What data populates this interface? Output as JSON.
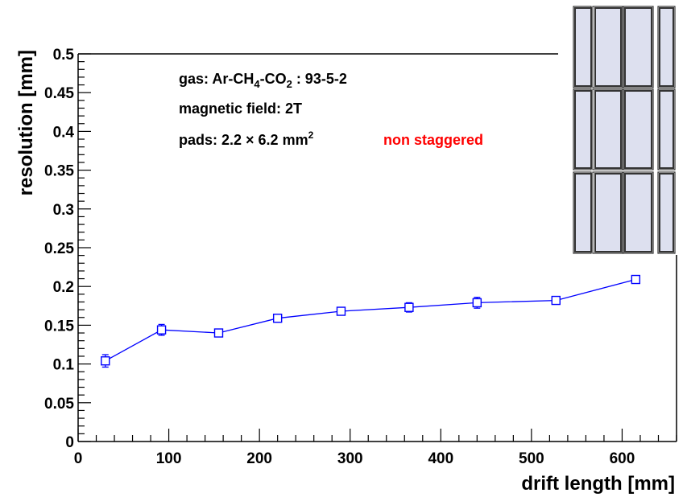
{
  "chart_data": {
    "type": "line",
    "title": "",
    "xlabel": "drift length [mm]",
    "ylabel": "resolution [mm]",
    "xlim": [
      0,
      660
    ],
    "ylim": [
      0,
      0.5
    ],
    "xticks": [
      "0",
      "100",
      "200",
      "300",
      "400",
      "500",
      "600"
    ],
    "yticks": [
      "0",
      "0.05",
      "0.1",
      "0.15",
      "0.2",
      "0.25",
      "0.3",
      "0.35",
      "0.4",
      "0.45",
      "0.5"
    ],
    "grid": false,
    "series": [
      {
        "color": "#0000ff",
        "marker": "open-square",
        "x": [
          30,
          92,
          155,
          220,
          290,
          365,
          440,
          527,
          615
        ],
        "y": [
          0.104,
          0.144,
          0.14,
          0.159,
          0.168,
          0.173,
          0.179,
          0.182,
          0.209
        ],
        "yerr": [
          0.008,
          0.007,
          0.005,
          0.005,
          0.004,
          0.006,
          0.007,
          0.005,
          0.005
        ]
      }
    ],
    "annotations": {
      "gas_prefix": "gas:  Ar-CH",
      "gas_sub1": "4",
      "gas_mid": "-CO",
      "gas_sub2": "2",
      "gas_suffix": " : 93-5-2",
      "field": "magnetic field: 2T",
      "pads_prefix": "pads: 2.2 × 6.2 mm",
      "pads_sup": "2",
      "pads_note": "non staggered"
    },
    "pad_inset": {
      "rows": 3,
      "fill": "#dde0ef",
      "stroke": "#333333"
    }
  }
}
